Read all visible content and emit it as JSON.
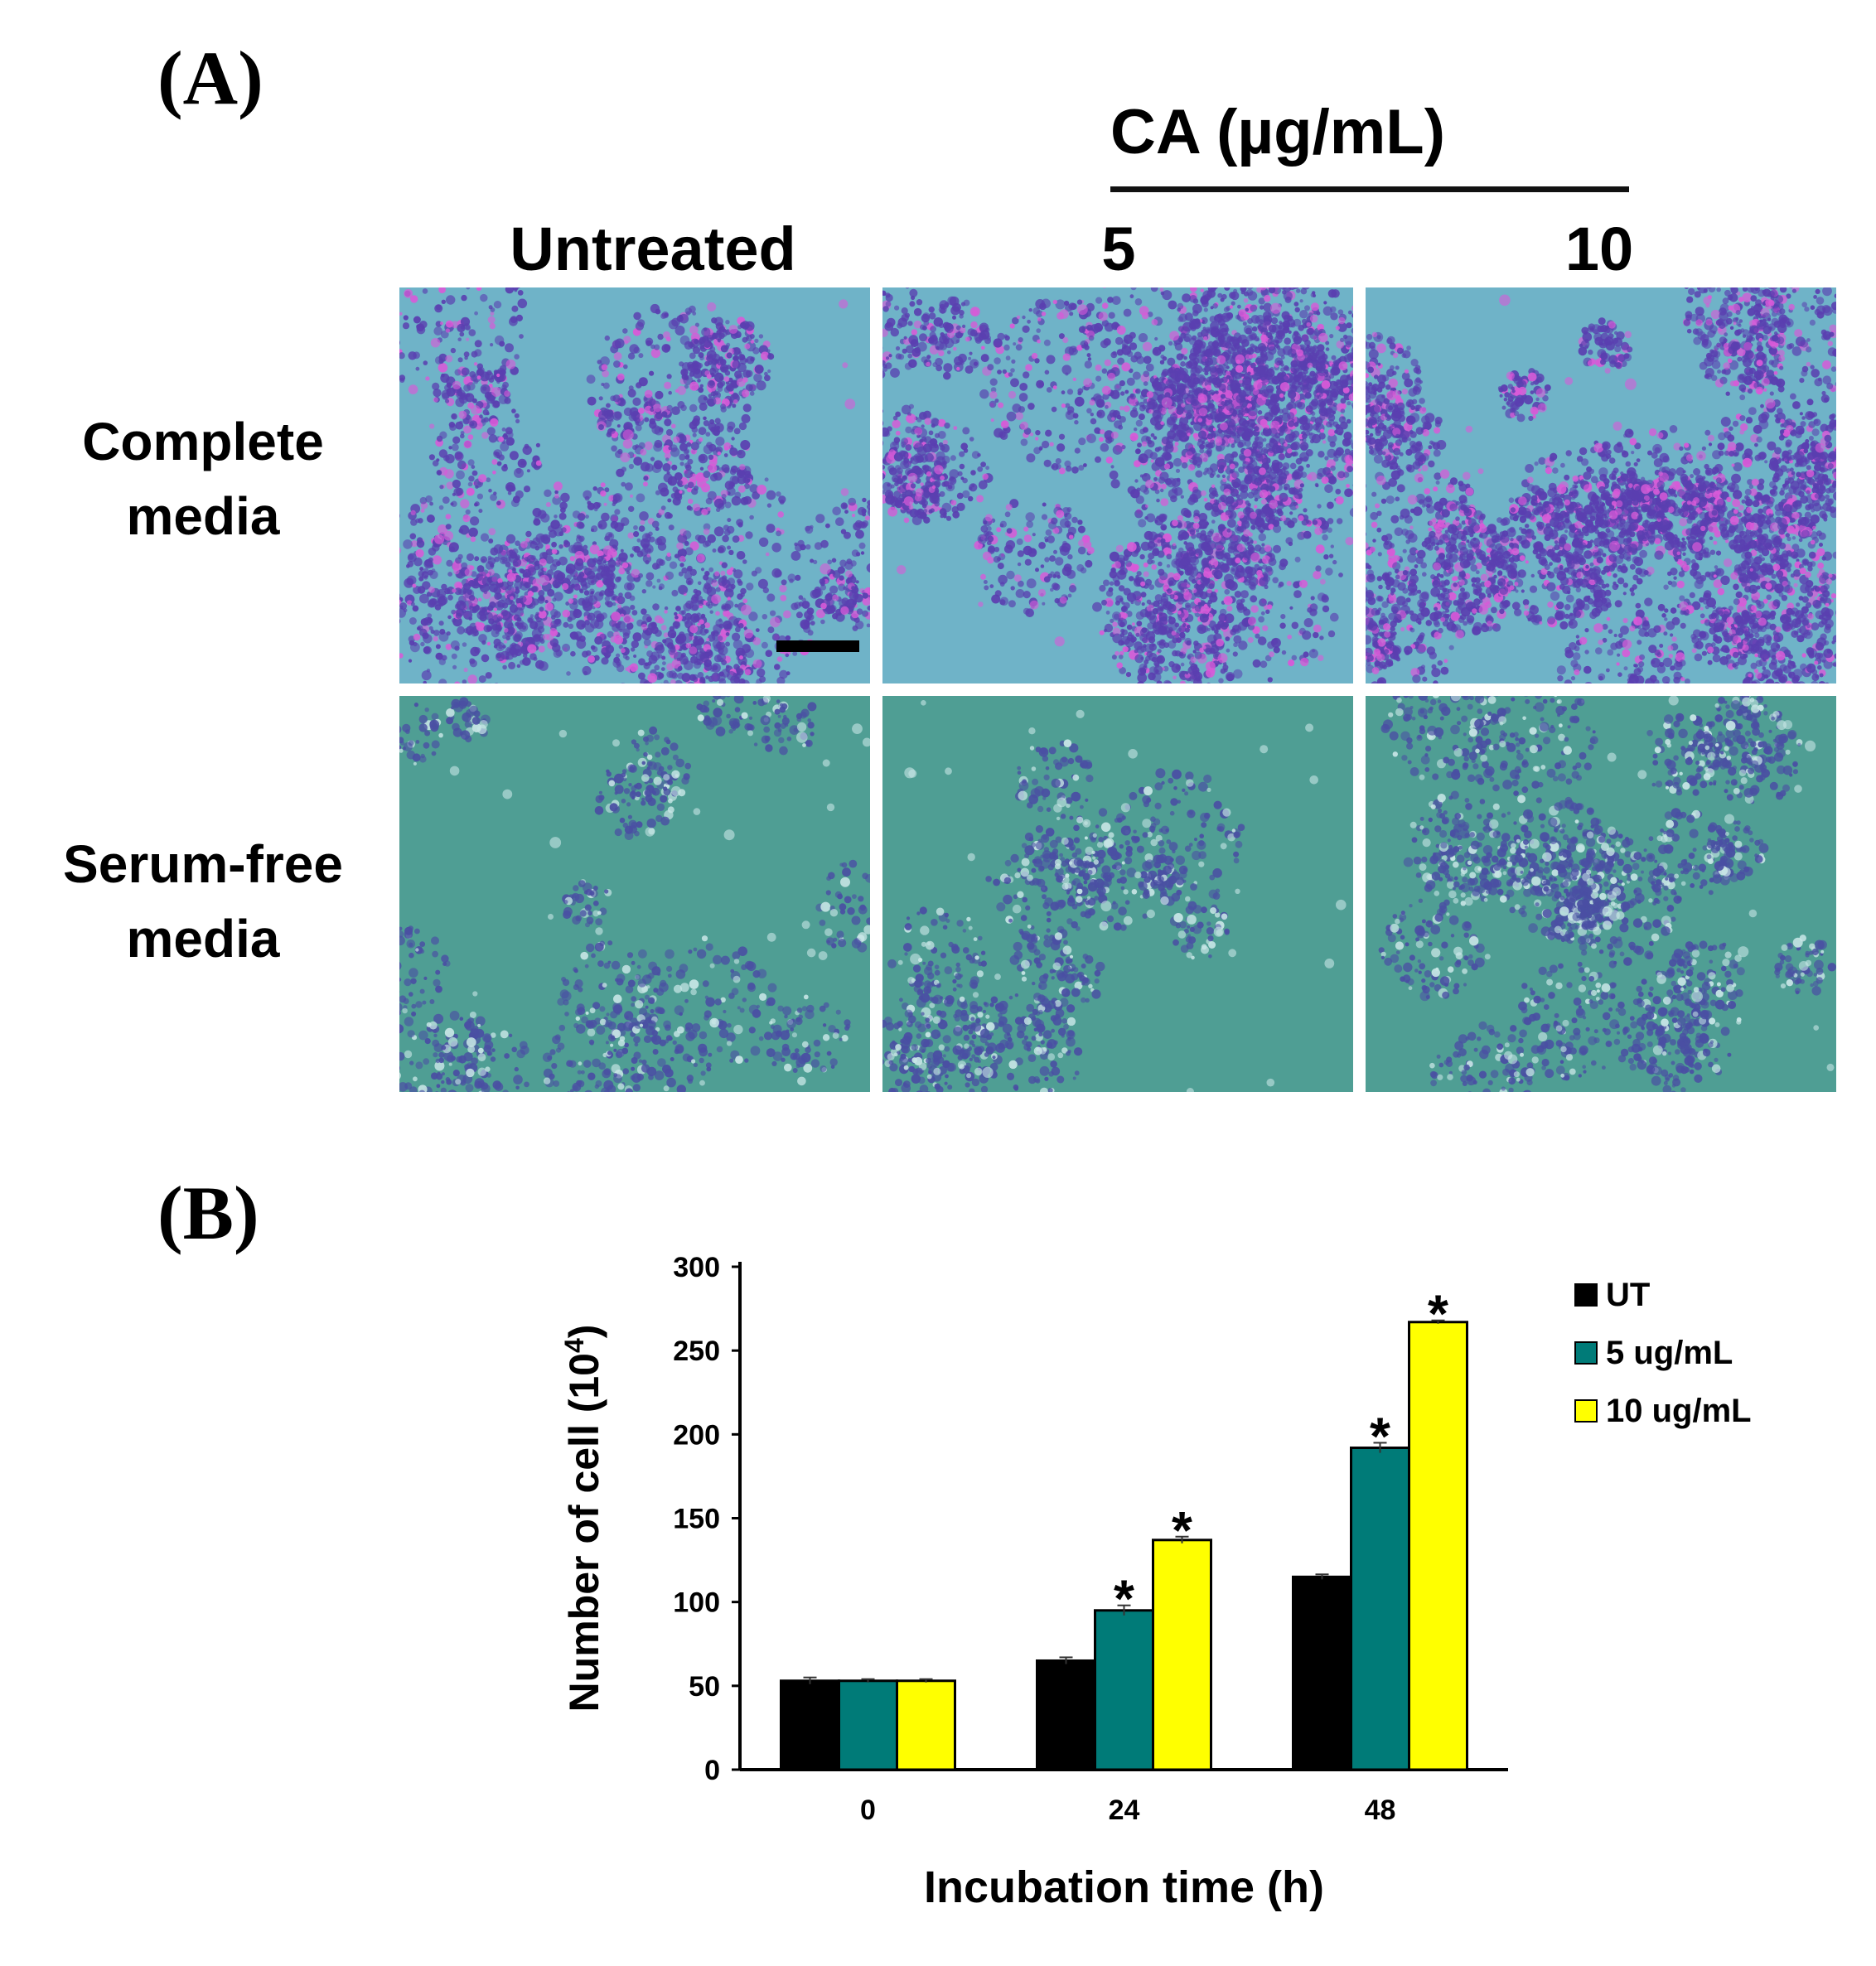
{
  "figure": {
    "panel_a_label": "(A)",
    "panel_b_label": "(B)",
    "treatment_header": "CA (µg/mL)",
    "columns": [
      "Untreated",
      "5",
      "10"
    ],
    "rows": [
      {
        "line1": "Complete",
        "line2": "media"
      },
      {
        "line1": "Serum-free",
        "line2": "media"
      }
    ],
    "colors": {
      "complete_bg": "#6fb3c8",
      "complete_cell": "#5a3fb0",
      "complete_highlight": "#d85ad8",
      "serum_bg": "#4f9e94",
      "serum_cell": "#4a4fa3",
      "serum_highlight": "#c8e6e6"
    }
  },
  "chart_data": {
    "type": "bar",
    "categories": [
      "0",
      "24",
      "48"
    ],
    "series": [
      {
        "name": "UT",
        "color": "#000000",
        "values": [
          53,
          65,
          115
        ],
        "errors": [
          2,
          2,
          1.5
        ],
        "significant": [
          false,
          false,
          false
        ]
      },
      {
        "name": "5 ug/mL",
        "color": "#007b78",
        "values": [
          53,
          95,
          192
        ],
        "errors": [
          1,
          3,
          3
        ],
        "significant": [
          false,
          true,
          true
        ]
      },
      {
        "name": "10 ug/mL",
        "color": "#ffff00",
        "values": [
          53,
          137,
          267
        ],
        "errors": [
          1,
          2,
          1
        ],
        "significant": [
          false,
          true,
          true
        ]
      }
    ],
    "xlabel": "Incubation time (h)",
    "ylabel": "Number of cell (10",
    "ylabel_sup": "4",
    "ylabel_close": ")",
    "ylim": [
      0,
      300
    ],
    "yticks": [
      "0",
      "50",
      "100",
      "150",
      "200",
      "250",
      "300"
    ],
    "significance_marker": "*",
    "legend_position": "right",
    "grid": false
  }
}
